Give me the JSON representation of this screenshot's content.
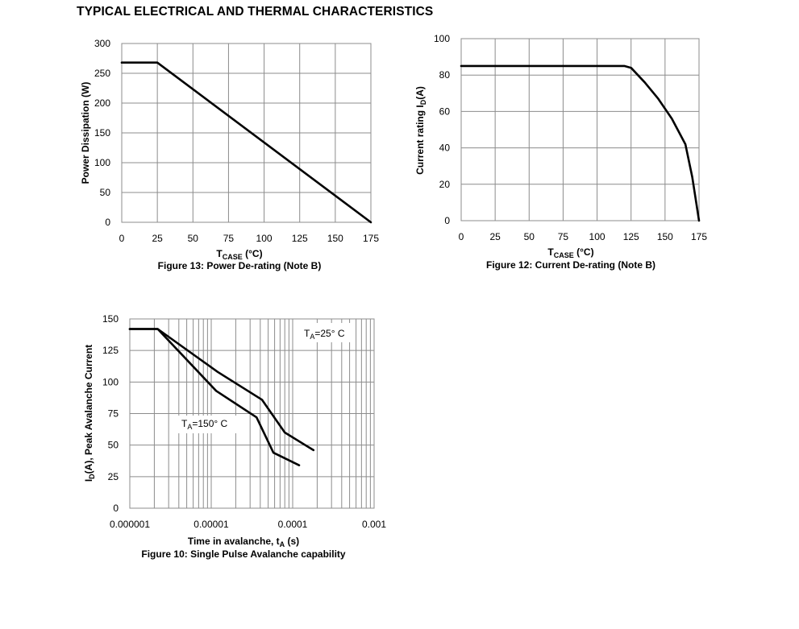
{
  "page": {
    "title": "TYPICAL ELECTRICAL AND THERMAL CHARACTERISTICS"
  },
  "chart_data": [
    {
      "id": "fig13",
      "type": "line",
      "title": "Figure 13: Power De-rating (Note B)",
      "xlabel_main": "T",
      "xlabel_sub": "CASE",
      "xlabel_tail": " (°C)",
      "ylabel": "Power Dissipation (W)",
      "xlim": [
        0,
        175
      ],
      "ylim": [
        0,
        300
      ],
      "x_ticks": [
        0,
        25,
        50,
        75,
        100,
        125,
        150,
        175
      ],
      "y_ticks": [
        0,
        50,
        100,
        150,
        200,
        250,
        300
      ],
      "x_grid": [
        0,
        25,
        50,
        75,
        100,
        125,
        150,
        175
      ],
      "y_grid": [
        0,
        50,
        100,
        150,
        200,
        250,
        300
      ],
      "grid": true,
      "series": [
        {
          "name": "Power Dissipation",
          "x": [
            0,
            25,
            175
          ],
          "y": [
            268,
            268,
            0
          ]
        }
      ]
    },
    {
      "id": "fig12",
      "type": "line",
      "title": "Figure 12: Current De-rating (Note B)",
      "xlabel_main": "T",
      "xlabel_sub": "CASE",
      "xlabel_tail": " (°C)",
      "ylabel_main": "Current rating I",
      "ylabel_sub": "D",
      "ylabel_tail": "(A)",
      "xlim": [
        0,
        175
      ],
      "ylim": [
        0,
        100
      ],
      "x_ticks": [
        0,
        25,
        50,
        75,
        100,
        125,
        150,
        175
      ],
      "y_ticks": [
        0,
        20,
        40,
        60,
        80,
        100
      ],
      "x_grid": [
        0,
        25,
        50,
        75,
        100,
        125,
        150,
        175
      ],
      "y_grid": [
        0,
        20,
        40,
        60,
        80,
        100
      ],
      "grid": true,
      "series": [
        {
          "name": "Current rating",
          "x": [
            0,
            120,
            125,
            135,
            145,
            155,
            165,
            170,
            175
          ],
          "y": [
            85,
            85,
            84,
            76,
            67,
            56,
            42,
            24,
            0
          ]
        }
      ]
    },
    {
      "id": "fig10",
      "type": "line",
      "x_scale": "log",
      "title": "Figure 10: Single Pulse Avalanche capability",
      "xlabel_main": "Time in avalanche, t",
      "xlabel_sub": "A",
      "xlabel_tail": " (s)",
      "ylabel_pre": "I",
      "ylabel_sub": "D",
      "ylabel_tail": "(A), Peak Avalanche Current",
      "xlim": [
        1e-06,
        0.001
      ],
      "ylim": [
        0,
        150
      ],
      "x_ticks": [
        1e-06,
        1e-05,
        0.0001,
        0.001
      ],
      "x_tick_labels": [
        "0.000001",
        "0.00001",
        "0.0001",
        "0.001"
      ],
      "y_ticks": [
        0,
        25,
        50,
        75,
        100,
        125,
        150
      ],
      "grid": true,
      "series": [
        {
          "name": "TA=25°C",
          "x": [
            1e-06,
            2.2e-06,
            1.2e-05,
            4.2e-05,
            8e-05,
            0.00018
          ],
          "y": [
            142,
            142,
            108,
            86,
            60,
            46
          ]
        },
        {
          "name": "TA=150°C",
          "x": [
            1e-06,
            2.2e-06,
            1.15e-05,
            3.6e-05,
            5.8e-05,
            0.00012
          ],
          "y": [
            142,
            142,
            93,
            72,
            44,
            34
          ]
        }
      ],
      "annotations": [
        {
          "main": "T",
          "sub": "A",
          "tail": "=25° C"
        },
        {
          "main": "T",
          "sub": "A",
          "tail": "=150° C"
        }
      ]
    }
  ]
}
